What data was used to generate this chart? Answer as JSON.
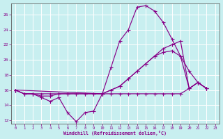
{
  "bg_color": "#c8eff0",
  "line_color": "#880088",
  "grid_color": "#b8e8ea",
  "xlabel": "Windchill (Refroidissement éolien,°C)",
  "ylim": [
    11.5,
    27.5
  ],
  "xlim": [
    -0.5,
    23.5
  ],
  "yticks": [
    12,
    14,
    16,
    18,
    20,
    22,
    24,
    26
  ],
  "xticks": [
    0,
    1,
    2,
    3,
    4,
    5,
    6,
    7,
    8,
    9,
    10,
    11,
    12,
    13,
    14,
    15,
    16,
    17,
    18,
    19,
    20,
    21,
    22,
    23
  ],
  "series": [
    {
      "x": [
        0,
        1,
        2,
        3,
        4,
        5,
        6,
        7,
        8,
        9,
        10,
        11,
        12,
        13,
        14,
        15,
        16,
        17,
        18,
        19,
        20,
        21,
        22
      ],
      "y": [
        16.0,
        15.5,
        15.5,
        15.0,
        14.5,
        15.0,
        13.0,
        11.8,
        13.0,
        13.2,
        15.5,
        19.0,
        22.5,
        24.0,
        27.0,
        27.2,
        26.5,
        25.0,
        22.8,
        20.5,
        18.5,
        17.0,
        16.2
      ]
    },
    {
      "x": [
        0,
        1,
        2,
        3,
        4,
        5,
        6,
        7,
        8,
        9,
        10,
        11,
        12,
        13,
        14,
        15,
        16,
        17,
        18,
        19,
        20,
        21,
        22
      ],
      "y": [
        16.0,
        15.5,
        15.5,
        15.2,
        15.2,
        15.5,
        15.5,
        15.5,
        15.5,
        15.5,
        15.5,
        16.0,
        16.5,
        17.5,
        18.5,
        19.5,
        20.5,
        21.5,
        22.0,
        22.5,
        16.2,
        17.0,
        16.2
      ]
    },
    {
      "x": [
        0,
        10,
        11,
        12,
        13,
        14,
        15,
        16,
        17,
        18,
        19,
        20,
        21,
        22
      ],
      "y": [
        16.0,
        15.5,
        16.0,
        16.5,
        17.5,
        18.5,
        19.5,
        20.5,
        21.0,
        21.2,
        20.5,
        16.2,
        17.0,
        16.2
      ]
    },
    {
      "x": [
        0,
        1,
        2,
        3,
        4,
        5,
        6,
        7,
        8,
        9,
        10,
        11,
        12,
        13,
        14,
        15,
        16,
        17,
        18,
        19,
        20,
        21,
        22
      ],
      "y": [
        16.0,
        15.5,
        15.5,
        15.5,
        15.5,
        15.5,
        15.5,
        15.5,
        15.5,
        15.5,
        15.5,
        15.5,
        15.5,
        15.5,
        15.5,
        15.5,
        15.5,
        15.5,
        15.5,
        15.5,
        16.2,
        17.0,
        16.2
      ]
    }
  ]
}
